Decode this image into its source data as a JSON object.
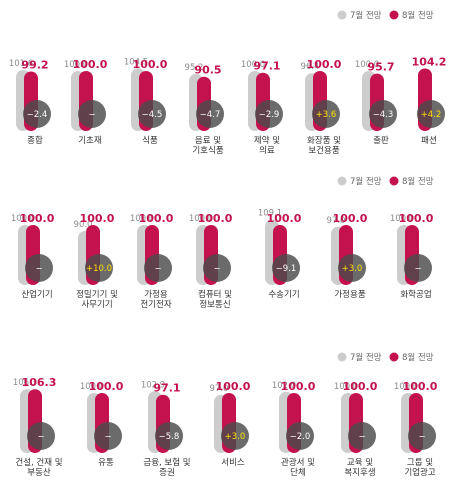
{
  "chart_data": {
    "type": "bar",
    "ylim": [
      0,
      110
    ],
    "legend": {
      "position": "top-right",
      "labels": [
        "7월 전망",
        "8월 전망"
      ]
    },
    "colors": {
      "july": "#cdcdcd",
      "august": "#c4124f",
      "change_circle": "#4a4a4a",
      "positive_change": "#ffe100"
    },
    "panels": [
      {
        "categories": [
          [
            "종합"
          ],
          [
            "기초재"
          ],
          [
            "식품"
          ],
          [
            "음료 및",
            "기호식품"
          ],
          [
            "제약 및",
            "의료"
          ],
          [
            "화장품 및",
            "보건용품"
          ],
          [
            "출판"
          ],
          [
            "패션"
          ]
        ],
        "series": [
          {
            "name": "7월 전망",
            "values": [
              101.6,
              100.0,
              104.5,
              95.2,
              100.0,
              96.4,
              100.0,
              null
            ]
          },
          {
            "name": "8월 전망",
            "values": [
              99.2,
              100.0,
              100.0,
              90.5,
              97.1,
              100.0,
              95.7,
              104.2
            ]
          }
        ],
        "changes": [
          "−2.4",
          "−",
          "−4.5",
          "−4.7",
          "−2.9",
          "+3.6",
          "−4.3",
          "+4.2"
        ]
      },
      {
        "categories": [
          [
            "산업기기"
          ],
          [
            "정밀기기 및",
            "사무기기"
          ],
          [
            "가정용",
            "전기전자"
          ],
          [
            "컴퓨터 및",
            "정보통신"
          ],
          [
            "수송기기"
          ],
          [
            "가정용품"
          ],
          [
            "화학공업"
          ]
        ],
        "series": [
          {
            "name": "7월 전망",
            "values": [
              100.0,
              90.0,
              100.0,
              100.0,
              109.1,
              97.0,
              100.0
            ]
          },
          {
            "name": "8월 전망",
            "values": [
              100.0,
              100.0,
              100.0,
              100.0,
              100.0,
              100.0,
              100.0
            ]
          }
        ],
        "changes": [
          "−",
          "+10.0",
          "−",
          "−",
          "−9.1",
          "+3.0",
          "−"
        ]
      },
      {
        "categories": [
          [
            "건설, 건재 및",
            "부동산"
          ],
          [
            "유통"
          ],
          [
            "금융, 보험 및",
            "증권"
          ],
          [
            "서비스"
          ],
          [
            "관광서 및",
            "단체"
          ],
          [
            "교육 및",
            "복지후생"
          ],
          [
            "그룹 및",
            "기업광고"
          ]
        ],
        "series": [
          {
            "name": "7월 전망",
            "values": [
              106.3,
              100.0,
              102.9,
              97.0,
              102.0,
              100.0,
              100.0
            ]
          },
          {
            "name": "8월 전망",
            "values": [
              106.3,
              100.0,
              97.1,
              100.0,
              100.0,
              100.0,
              100.0
            ]
          }
        ],
        "changes": [
          "−",
          "−",
          "−5.8",
          "+3.0",
          "−2.0",
          "−",
          "−"
        ]
      }
    ]
  }
}
